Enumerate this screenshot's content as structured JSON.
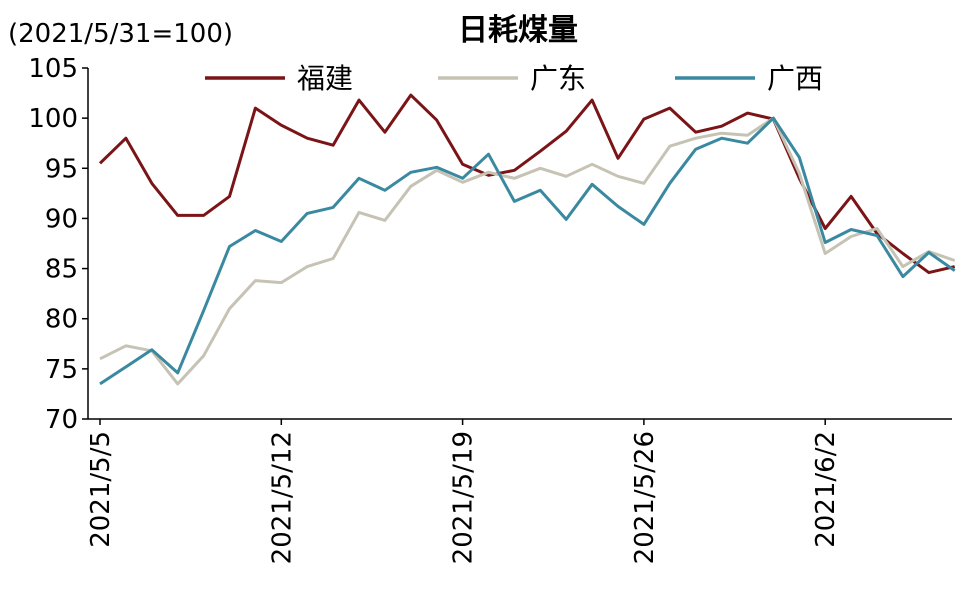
{
  "chart_data": {
    "type": "line",
    "title": "日耗煤量",
    "unit_label": "(2021/5/31=100)",
    "xlabel": "",
    "ylabel": "",
    "ylim": [
      70,
      105
    ],
    "yticks": [
      70,
      75,
      80,
      85,
      90,
      95,
      100,
      105
    ],
    "grid": false,
    "legend_position": "top",
    "x": [
      "2021/5/5",
      "2021/5/6",
      "2021/5/7",
      "2021/5/8",
      "2021/5/9",
      "2021/5/10",
      "2021/5/11",
      "2021/5/12",
      "2021/5/13",
      "2021/5/14",
      "2021/5/15",
      "2021/5/16",
      "2021/5/17",
      "2021/5/18",
      "2021/5/19",
      "2021/5/20",
      "2021/5/21",
      "2021/5/22",
      "2021/5/23",
      "2021/5/24",
      "2021/5/25",
      "2021/5/26",
      "2021/5/27",
      "2021/5/28",
      "2021/5/29",
      "2021/5/30",
      "2021/5/31",
      "2021/6/1",
      "2021/6/2",
      "2021/6/3",
      "2021/6/4",
      "2021/6/5",
      "2021/6/6",
      "2021/6/7",
      "2021/6/8"
    ],
    "x_tick_labels": [
      "2021/5/5",
      "2021/5/12",
      "2021/5/19",
      "2021/5/26",
      "2021/6/2"
    ],
    "x_tick_index": [
      0,
      7,
      14,
      21,
      28
    ],
    "series": [
      {
        "name": "福建",
        "color": "#7b1416",
        "values": [
          95.5,
          98.0,
          93.5,
          90.3,
          90.3,
          92.2,
          101.0,
          99.3,
          98.0,
          97.3,
          101.8,
          98.6,
          102.3,
          99.8,
          95.4,
          94.3,
          94.8,
          96.7,
          98.7,
          101.8,
          96.0,
          99.9,
          101.0,
          98.6,
          99.2,
          100.5,
          99.9,
          94.0,
          89.0,
          92.2,
          88.5,
          86.5,
          84.6,
          85.2,
          null
        ]
      },
      {
        "name": "广东",
        "color": "#c6c3b4",
        "values": [
          76.0,
          77.3,
          76.8,
          73.5,
          76.3,
          81.0,
          83.8,
          83.6,
          85.2,
          86.0,
          90.6,
          89.8,
          93.2,
          94.8,
          93.6,
          94.6,
          94.0,
          95.0,
          94.2,
          95.4,
          94.2,
          93.5,
          97.2,
          98.0,
          98.5,
          98.3,
          100.0,
          94.5,
          86.5,
          88.2,
          89.0,
          85.2,
          86.7,
          85.8,
          null
        ]
      },
      {
        "name": "广西",
        "color": "#3a89a0",
        "values": [
          73.5,
          75.2,
          76.9,
          74.6,
          80.8,
          87.2,
          88.8,
          87.7,
          90.5,
          91.1,
          94.0,
          92.8,
          94.6,
          95.1,
          94.0,
          96.4,
          91.7,
          92.8,
          89.9,
          93.4,
          91.2,
          89.4,
          93.5,
          96.9,
          98.0,
          97.5,
          100.0,
          96.1,
          87.6,
          88.9,
          88.3,
          84.2,
          86.6,
          84.8,
          null
        ]
      }
    ]
  }
}
